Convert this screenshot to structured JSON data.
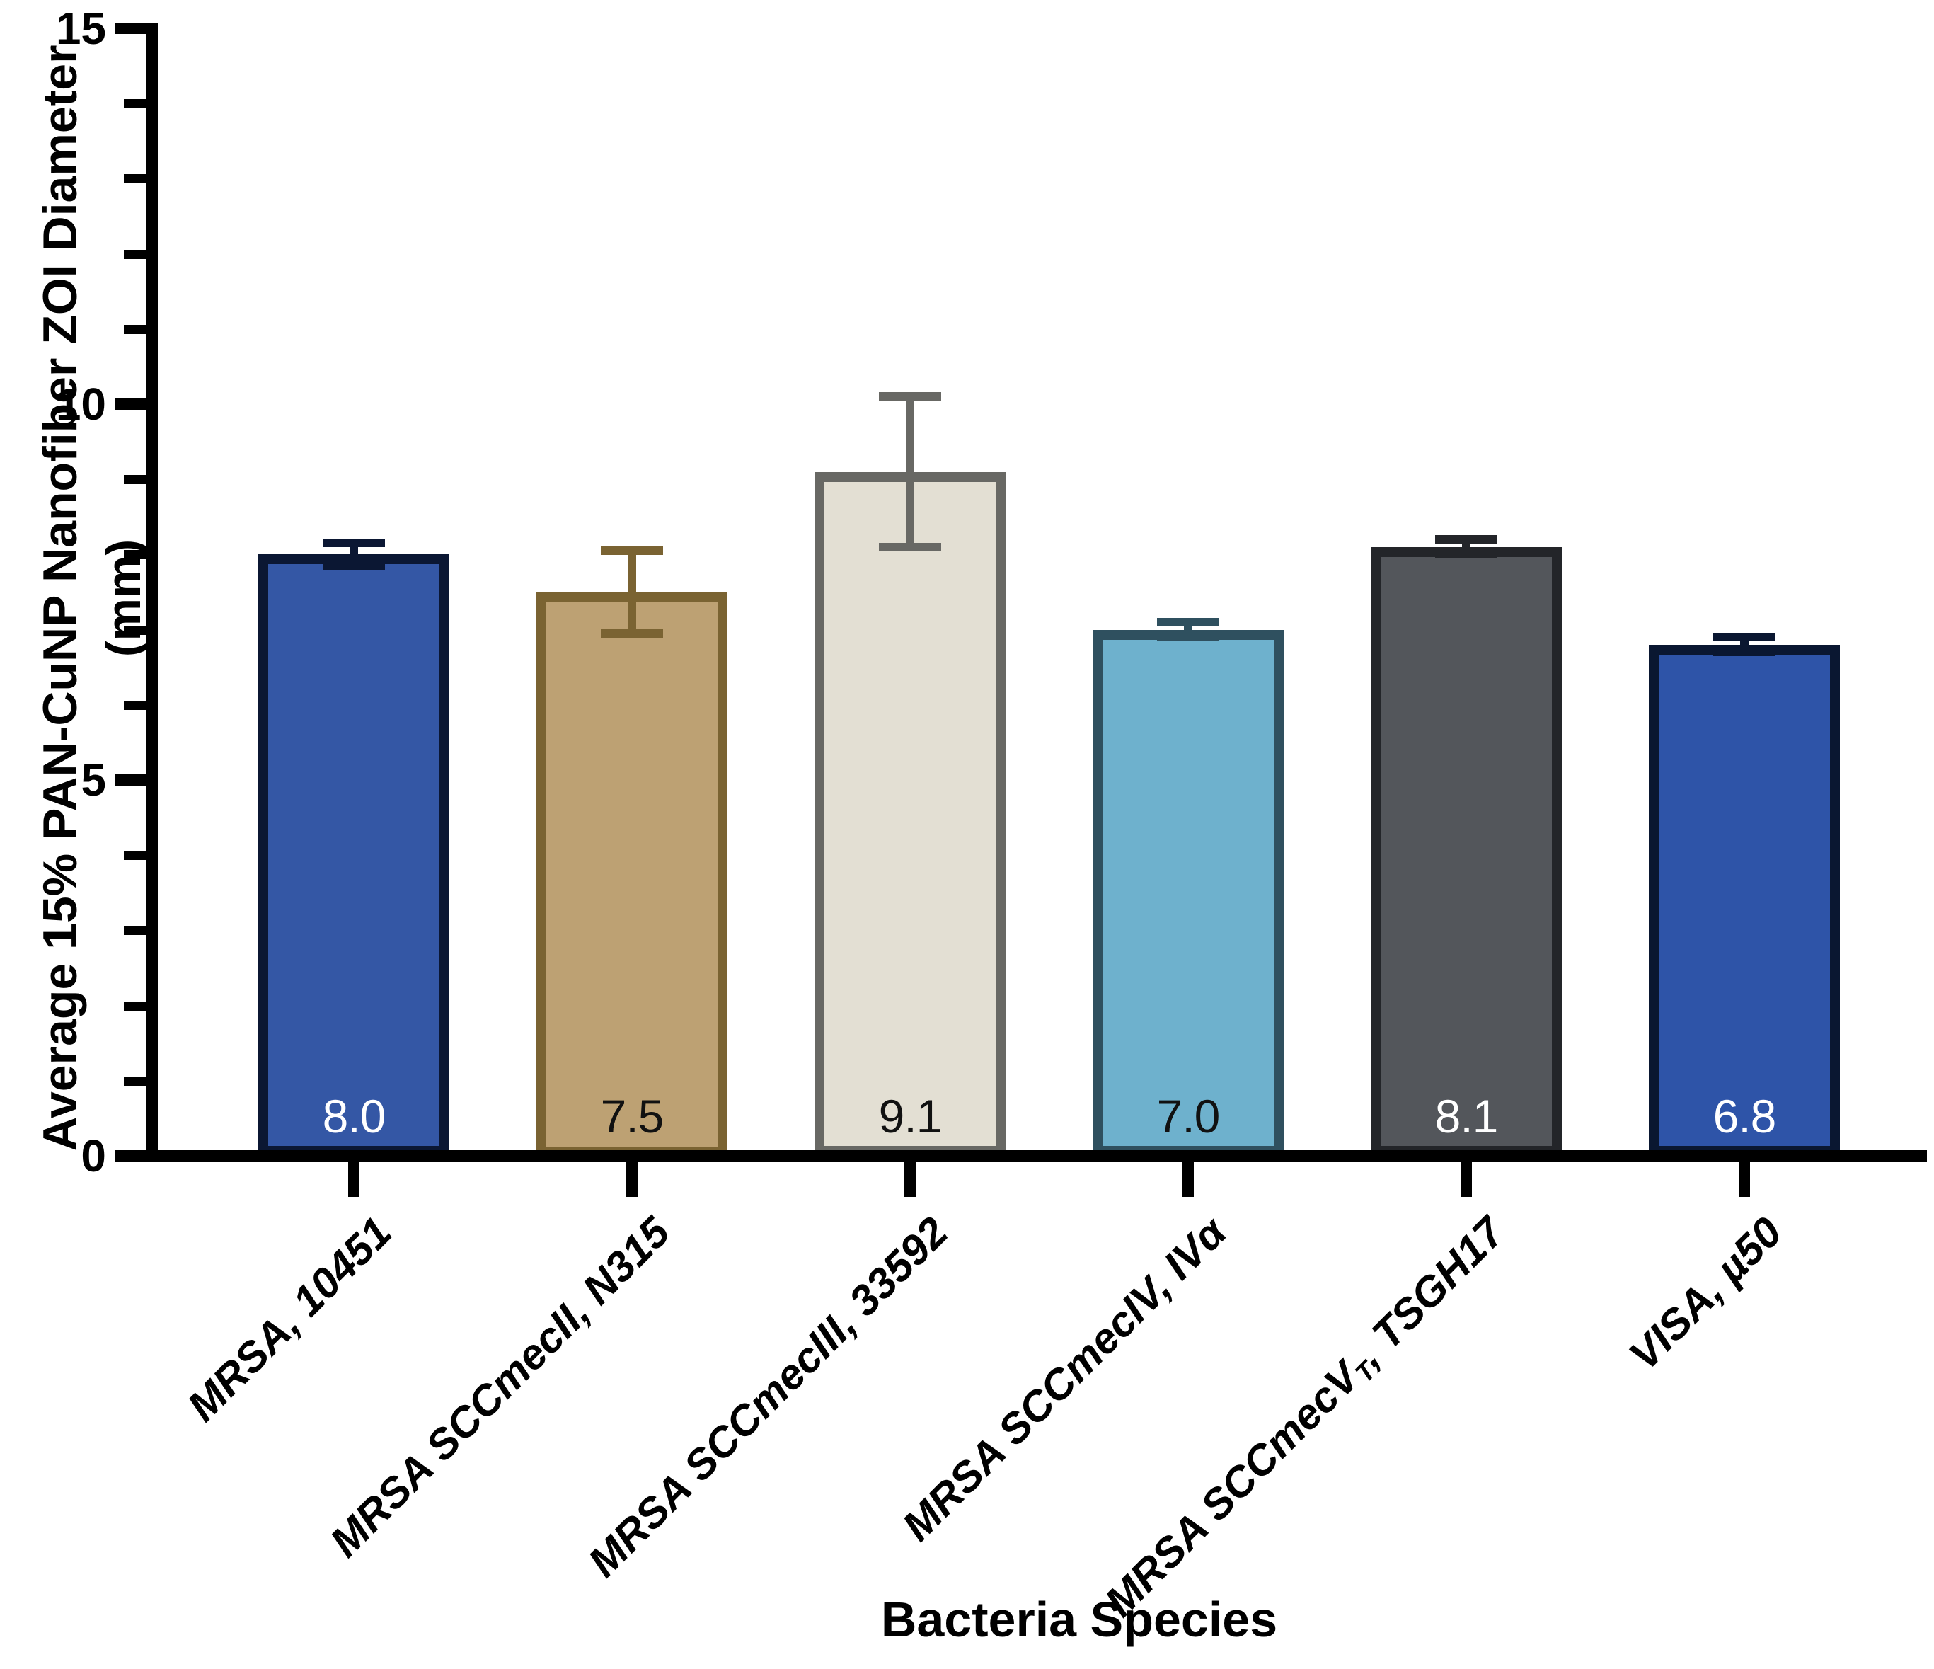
{
  "chart_data": {
    "type": "bar",
    "title": "",
    "xlabel": "Bacteria Species",
    "ylabel": "Average 15% PAN-CuNP Nanofiber ZOI Diameter (mm)",
    "ylim": [
      0,
      15
    ],
    "yticks_major": [
      0,
      5,
      10,
      15
    ],
    "ytick_minor_step": 1,
    "grid": false,
    "legend": null,
    "categories": [
      "MRSA, 10451",
      "MRSA SCCmecII, N315",
      "MRSA SCCmecIII, 33592",
      "MRSA SCCmecIV, IVα",
      "MRSA SCCmecVT, TSGH17",
      "VISA, µ50"
    ],
    "categories_rich": [
      [
        {
          "text": "MRSA, 10451"
        }
      ],
      [
        {
          "text": "MRSA SCCmecII, N315"
        }
      ],
      [
        {
          "text": "MRSA SCCmecIII, 33592"
        }
      ],
      [
        {
          "text": "MRSA SCCmecIV, IVα"
        }
      ],
      [
        {
          "text": "MRSA SCCmecV"
        },
        {
          "text": "T",
          "sub": true
        },
        {
          "text": ", TSGH17"
        }
      ],
      [
        {
          "text": "VISA, µ50"
        }
      ]
    ],
    "values": [
      8.0,
      7.5,
      9.1,
      7.0,
      8.1,
      6.8
    ],
    "value_labels": [
      "8.0",
      "7.5",
      "9.1",
      "7.0",
      "8.1",
      "6.8"
    ],
    "errors": [
      0.15,
      0.55,
      1.0,
      0.1,
      0.1,
      0.1
    ],
    "bar_fill_colors": [
      "#3457A5",
      "#BDA173",
      "#E3DFD3",
      "#6EB1CD",
      "#53565B",
      "#2E54A8"
    ],
    "bar_border_colors": [
      "#0B1733",
      "#7A6332",
      "#686864",
      "#2F505F",
      "#232529",
      "#0A1731"
    ],
    "value_label_colors": [
      "#FFFFFF",
      "#111111",
      "#111111",
      "#111111",
      "#FFFFFF",
      "#FFFFFF"
    ],
    "axis_color": "#000000"
  }
}
